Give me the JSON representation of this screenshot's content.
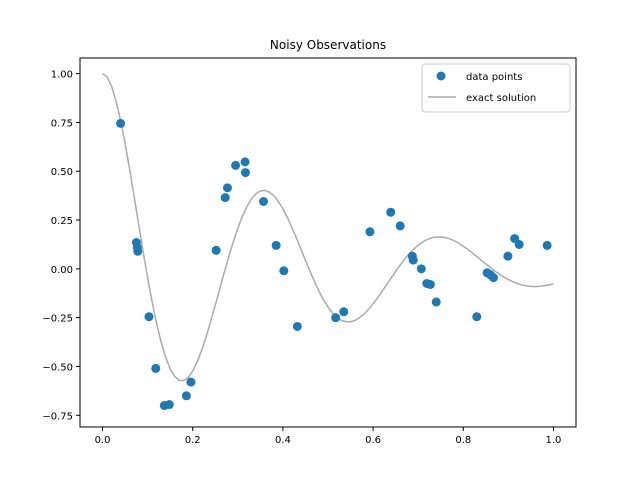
{
  "chart_data": {
    "type": "scatter",
    "title": "Noisy Observations",
    "xlabel": "",
    "ylabel": "",
    "xlim": [
      -0.05,
      1.05
    ],
    "ylim": [
      -0.81,
      1.08
    ],
    "xticks": [
      0.0,
      0.2,
      0.4,
      0.6,
      0.8,
      1.0
    ],
    "xtick_labels": [
      "0.0",
      "0.2",
      "0.4",
      "0.6",
      "0.8",
      "1.0"
    ],
    "yticks": [
      -0.75,
      -0.5,
      -0.25,
      0.0,
      0.25,
      0.5,
      0.75,
      1.0
    ],
    "ytick_labels": [
      "−0.75",
      "−0.50",
      "−0.25",
      "0.00",
      "0.25",
      "0.50",
      "0.75",
      "1.00"
    ],
    "grid": false,
    "legend": {
      "placement": "top-right",
      "entries": [
        {
          "label": "data points",
          "marker": "circle",
          "color": "#1f77b4"
        },
        {
          "label": "exact solution",
          "marker": "line",
          "color": "#aaaaaa"
        }
      ]
    },
    "series": [
      {
        "name": "data points",
        "kind": "scatter",
        "color": "#1f77b4",
        "x": [
          0.04,
          0.075,
          0.077,
          0.078,
          0.103,
          0.118,
          0.137,
          0.148,
          0.186,
          0.196,
          0.252,
          0.272,
          0.277,
          0.295,
          0.316,
          0.317,
          0.357,
          0.385,
          0.402,
          0.432,
          0.517,
          0.535,
          0.593,
          0.639,
          0.66,
          0.687,
          0.689,
          0.707,
          0.719,
          0.727,
          0.74,
          0.83,
          0.853,
          0.86,
          0.867,
          0.899,
          0.914,
          0.924,
          0.986
        ],
        "y": [
          0.745,
          0.135,
          0.11,
          0.09,
          -0.245,
          -0.51,
          -0.7,
          -0.695,
          -0.65,
          -0.58,
          0.095,
          0.365,
          0.415,
          0.53,
          0.548,
          0.493,
          0.345,
          0.12,
          -0.01,
          -0.295,
          -0.25,
          -0.22,
          0.19,
          0.29,
          0.22,
          0.065,
          0.045,
          0.0,
          -0.075,
          -0.08,
          -0.17,
          -0.245,
          -0.02,
          -0.03,
          -0.045,
          0.065,
          0.155,
          0.125,
          0.12
        ]
      },
      {
        "name": "exact solution",
        "kind": "line",
        "color": "#aaaaaa",
        "x": [
          0.0,
          0.01,
          0.02,
          0.03,
          0.04,
          0.05,
          0.06,
          0.07,
          0.08,
          0.09,
          0.1,
          0.11,
          0.12,
          0.13,
          0.14,
          0.15,
          0.16,
          0.17,
          0.18,
          0.19,
          0.2,
          0.21,
          0.22,
          0.23,
          0.24,
          0.25,
          0.26,
          0.27,
          0.28,
          0.29,
          0.3,
          0.31,
          0.32,
          0.33,
          0.34,
          0.35,
          0.36,
          0.37,
          0.38,
          0.39,
          0.4,
          0.41,
          0.42,
          0.43,
          0.44,
          0.45,
          0.46,
          0.47,
          0.48,
          0.49,
          0.5,
          0.51,
          0.52,
          0.53,
          0.54,
          0.55,
          0.56,
          0.57,
          0.58,
          0.59,
          0.6,
          0.61,
          0.62,
          0.63,
          0.64,
          0.65,
          0.66,
          0.67,
          0.68,
          0.69,
          0.7,
          0.71,
          0.72,
          0.73,
          0.74,
          0.75,
          0.76,
          0.77,
          0.78,
          0.79,
          0.8,
          0.81,
          0.82,
          0.83,
          0.84,
          0.85,
          0.86,
          0.87,
          0.88,
          0.89,
          0.9,
          0.91,
          0.92,
          0.93,
          0.94,
          0.95,
          0.96,
          0.97,
          0.98,
          0.99,
          1.0
        ],
        "y": [
          1.0,
          0.983,
          0.935,
          0.86,
          0.761,
          0.643,
          0.511,
          0.371,
          0.229,
          0.088,
          -0.046,
          -0.17,
          -0.281,
          -0.376,
          -0.453,
          -0.512,
          -0.551,
          -0.571,
          -0.572,
          -0.556,
          -0.523,
          -0.476,
          -0.416,
          -0.346,
          -0.268,
          -0.186,
          -0.102,
          -0.018,
          0.063,
          0.139,
          0.208,
          0.268,
          0.318,
          0.357,
          0.384,
          0.399,
          0.402,
          0.393,
          0.374,
          0.345,
          0.307,
          0.262,
          0.212,
          0.158,
          0.101,
          0.044,
          -0.012,
          -0.065,
          -0.114,
          -0.158,
          -0.195,
          -0.226,
          -0.249,
          -0.264,
          -0.271,
          -0.271,
          -0.264,
          -0.25,
          -0.231,
          -0.207,
          -0.179,
          -0.148,
          -0.115,
          -0.081,
          -0.047,
          -0.013,
          0.019,
          0.049,
          0.077,
          0.101,
          0.121,
          0.138,
          0.151,
          0.159,
          0.163,
          0.164,
          0.16,
          0.154,
          0.144,
          0.131,
          0.116,
          0.1,
          0.082,
          0.063,
          0.044,
          0.025,
          0.007,
          -0.011,
          -0.027,
          -0.042,
          -0.055,
          -0.066,
          -0.075,
          -0.082,
          -0.087,
          -0.09,
          -0.091,
          -0.089,
          -0.086,
          -0.082,
          -0.076
        ]
      }
    ]
  }
}
